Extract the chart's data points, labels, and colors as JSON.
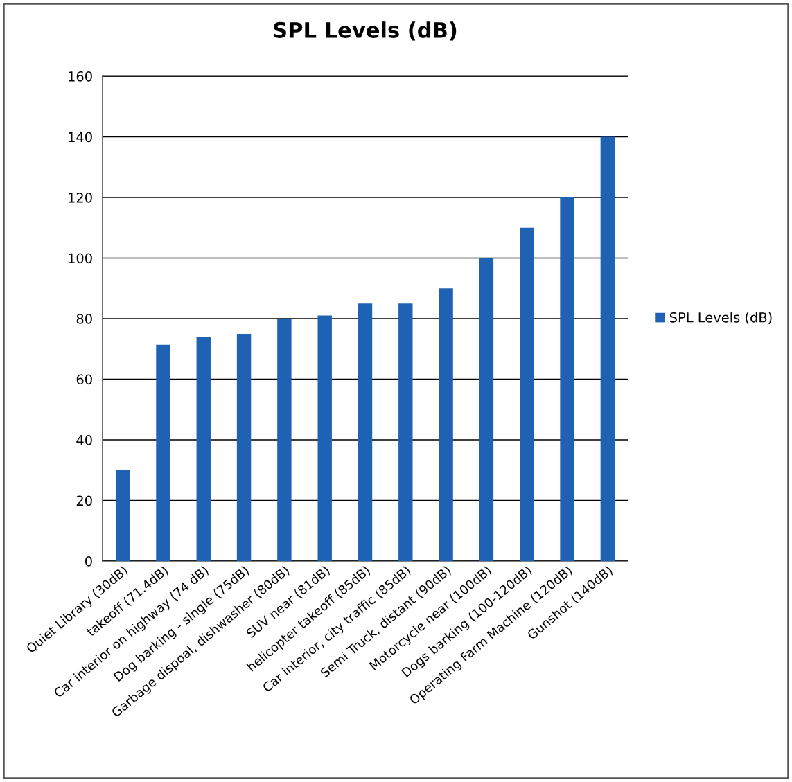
{
  "chart_data": {
    "type": "bar",
    "title": "SPL Levels (dB)",
    "categories": [
      "Quiet Library (30dB)",
      "takeoff (71.4dB)",
      "Car interior on highway (74 dB)",
      "Dog barking - single (75dB)",
      "Garbage dispoal, dishwasher (80dB)",
      "SUV near (81dB)",
      "helicopter takeoff (85dB)",
      "Car interior, city traffic (85dB)",
      "Semi Truck, distant (90dB)",
      "Motorcycle near (100dB)",
      "Dogs barking (100-120dB)",
      "Operating Farm Machine (120dB)",
      "Gunshot (140dB)"
    ],
    "series": [
      {
        "name": "SPL Levels (dB)",
        "color": "#1f62b4",
        "values": [
          30,
          71.4,
          74,
          75,
          80,
          81,
          85,
          85,
          90,
          100,
          110,
          120,
          140
        ]
      }
    ],
    "ylim": [
      0,
      160
    ],
    "yticks": [
      0,
      20,
      40,
      60,
      80,
      100,
      120,
      140,
      160
    ],
    "grid": "y",
    "legend": "right"
  }
}
